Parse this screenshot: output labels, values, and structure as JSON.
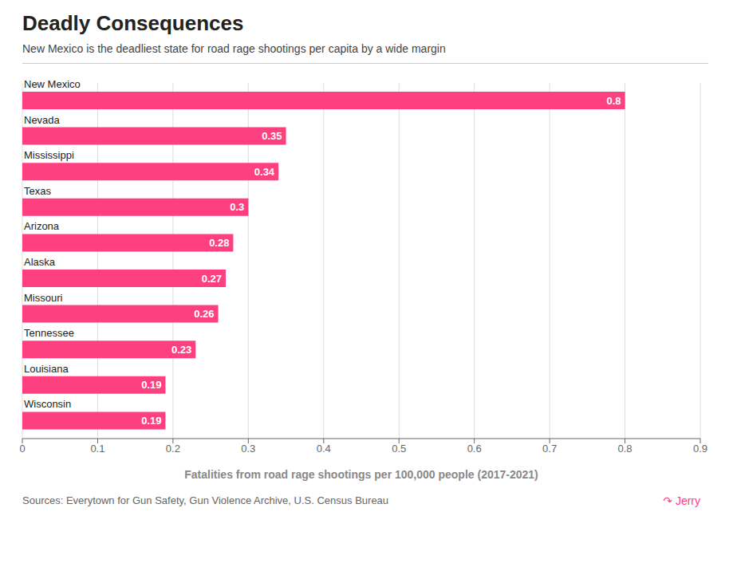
{
  "chart_data": {
    "type": "bar",
    "orientation": "horizontal",
    "title": "Deadly Consequences",
    "subtitle": "New Mexico is the deadliest state for road rage shootings per capita by a wide margin",
    "xlabel": "Fatalities from road rage shootings per 100,000 people (2017-2021)",
    "source": "Sources: Everytown for Gun Safety, Gun Violence Archive, U.S. Census Bureau",
    "annotations": [
      "↷ Jerry"
    ],
    "categories": [
      "New Mexico",
      "Nevada",
      "Mississippi",
      "Texas",
      "Arizona",
      "Alaska",
      "Missouri",
      "Tennessee",
      "Louisiana",
      "Wisconsin"
    ],
    "values": [
      0.8,
      0.35,
      0.34,
      0.3,
      0.28,
      0.27,
      0.26,
      0.23,
      0.19,
      0.19
    ],
    "value_labels": [
      "0.8",
      "0.35",
      "0.34",
      "0.3",
      "0.28",
      "0.27",
      "0.26",
      "0.23",
      "0.19",
      "0.19"
    ],
    "data_labels": true,
    "color": "#FF4080",
    "xlim": [
      0,
      0.9
    ],
    "xticks": [
      0,
      0.1,
      0.2,
      0.3,
      0.4,
      0.5,
      0.6,
      0.7,
      0.8,
      0.9
    ],
    "grid": true
  }
}
